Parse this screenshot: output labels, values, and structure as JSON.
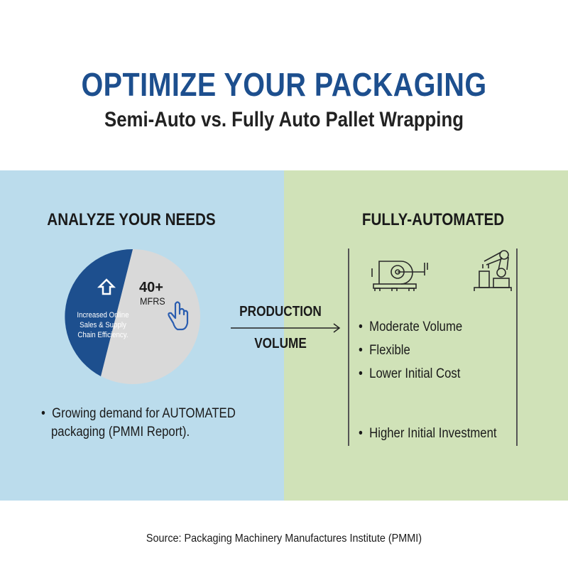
{
  "header": {
    "title": "OPTIMIZE YOUR PACKAGING",
    "subtitle": "Semi-Auto vs. Fully Auto Pallet Wrapping"
  },
  "left": {
    "heading": "ANALYZE YOUR NEEDS",
    "pie": {
      "blue_label_lines": [
        "Increased Online",
        "Sales & Supply",
        "Chain Efficiency."
      ],
      "gray_value": "40+",
      "gray_label": "MFRS",
      "colors": {
        "blue": "#1d4f8e",
        "gray": "#d9d9d9"
      },
      "icons": [
        "arrow-up-icon",
        "pointing-hand-icon"
      ]
    },
    "bullet": [
      "Growing demand for AUTOMATED",
      "packaging (PMMI Report)."
    ]
  },
  "arrow": {
    "top": "PRODUCTION",
    "bottom": "VOLUME"
  },
  "right": {
    "heading": "FULLY-AUTOMATED",
    "icons": [
      "stretch-wrapper-icon",
      "robotic-arm-icon"
    ],
    "bullets": [
      "Moderate Volume",
      "Flexible",
      "Lower Initial Cost"
    ],
    "bullet_last": "Higher Initial Investment"
  },
  "footer": "Source: Packaging Machinery Manufactures Institute (PMMI)",
  "colors": {
    "title": "#1d4f8e",
    "left_bg": "#bbdcec",
    "right_bg": "#d0e2b8"
  }
}
